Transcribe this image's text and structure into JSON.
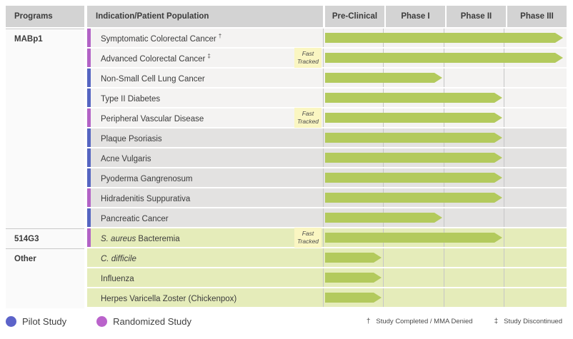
{
  "header": {
    "programs": "Programs",
    "indication": "Indication/Patient Population",
    "phases": [
      "Pre-Clinical",
      "Phase I",
      "Phase II",
      "Phase III"
    ]
  },
  "labels": {
    "fast_line1": "Fast",
    "fast_line2": "Tracked"
  },
  "chart_data": {
    "type": "bar",
    "title": "Clinical development pipeline: furthest phase reached per indication",
    "x_categories": [
      "Pre-Clinical",
      "Phase I",
      "Phase II",
      "Phase III"
    ],
    "phase_scale": {
      "preclinical": 1,
      "phase1": 2,
      "phase2": 3,
      "phase3": 4
    },
    "rows": [
      {
        "program": "MABp1",
        "program_start": true,
        "section": "a",
        "indication_italic": "",
        "indication": "Symptomatic Colorectal Cancer",
        "sup": "†",
        "study": "randomized",
        "phase": "phase3",
        "phase_num": 4,
        "fast_tracked": false
      },
      {
        "program": "",
        "program_start": false,
        "section": "a",
        "indication_italic": "",
        "indication": "Advanced Colorectal Cancer",
        "sup": "‡",
        "study": "randomized",
        "phase": "phase3",
        "phase_num": 4,
        "fast_tracked": true
      },
      {
        "program": "",
        "program_start": false,
        "section": "a",
        "indication_italic": "",
        "indication": "Non-Small Cell Lung Cancer",
        "sup": "",
        "study": "pilot",
        "phase": "phase1",
        "phase_num": 2,
        "fast_tracked": false
      },
      {
        "program": "",
        "program_start": false,
        "section": "a",
        "indication_italic": "",
        "indication": "Type II Diabetes",
        "sup": "",
        "study": "pilot",
        "phase": "phase2",
        "phase_num": 3,
        "fast_tracked": false
      },
      {
        "program": "",
        "program_start": false,
        "section": "a",
        "indication_italic": "",
        "indication": "Peripheral Vascular Disease",
        "sup": "",
        "study": "randomized",
        "phase": "phase2",
        "phase_num": 3,
        "fast_tracked": true
      },
      {
        "program": "",
        "program_start": false,
        "section": "b",
        "indication_italic": "",
        "indication": "Plaque Psoriasis",
        "sup": "",
        "study": "pilot",
        "phase": "phase2",
        "phase_num": 3,
        "fast_tracked": false
      },
      {
        "program": "",
        "program_start": false,
        "section": "b",
        "indication_italic": "",
        "indication": "Acne Vulgaris",
        "sup": "",
        "study": "pilot",
        "phase": "phase2",
        "phase_num": 3,
        "fast_tracked": false
      },
      {
        "program": "",
        "program_start": false,
        "section": "b",
        "indication_italic": "",
        "indication": "Pyoderma Gangrenosum",
        "sup": "",
        "study": "pilot",
        "phase": "phase2",
        "phase_num": 3,
        "fast_tracked": false
      },
      {
        "program": "",
        "program_start": false,
        "section": "b",
        "indication_italic": "",
        "indication": "Hidradenitis Suppurativa",
        "sup": "",
        "study": "randomized",
        "phase": "phase2",
        "phase_num": 3,
        "fast_tracked": false
      },
      {
        "program": "",
        "program_start": false,
        "section": "b",
        "indication_italic": "",
        "indication": "Pancreatic Cancer",
        "sup": "",
        "study": "pilot",
        "phase": "phase1",
        "phase_num": 2,
        "fast_tracked": false
      },
      {
        "program": "514G3",
        "program_start": true,
        "section": "green",
        "indication_italic": "S. aureus",
        "indication": " Bacteremia",
        "sup": "",
        "study": "randomized",
        "phase": "phase2",
        "phase_num": 3,
        "fast_tracked": true
      },
      {
        "program": "Other",
        "program_start": true,
        "section": "green",
        "indication_italic": "C. difficile",
        "indication": "",
        "sup": "",
        "study": "",
        "phase": "preclinical",
        "phase_num": 1,
        "fast_tracked": false
      },
      {
        "program": "",
        "program_start": false,
        "section": "green",
        "indication_italic": "",
        "indication": "Influenza",
        "sup": "",
        "study": "",
        "phase": "preclinical",
        "phase_num": 1,
        "fast_tracked": false
      },
      {
        "program": "",
        "program_start": false,
        "section": "green",
        "indication_italic": "",
        "indication": "Herpes Varicella Zoster (Chickenpox)",
        "sup": "",
        "study": "",
        "phase": "preclinical",
        "phase_num": 1,
        "fast_tracked": false
      }
    ]
  },
  "legend": [
    {
      "label": "Pilot Study",
      "color": "#5c63c9"
    },
    {
      "label": "Randomized Study",
      "color": "#ba63cb"
    }
  ],
  "footnotes": [
    {
      "symbol": "†",
      "text": "Study Completed / MMA Denied"
    },
    {
      "symbol": "‡",
      "text": "Study Discontinued"
    }
  ],
  "colors": {
    "arrow_green": "#b3ca5d",
    "header_bg": "#d3d3d3",
    "section_light_gray": "#f4f3f2",
    "section_dark_gray": "#e3e2e1",
    "section_green": "#e5ecba",
    "pilot_bar": "#5565c1",
    "randomized_bar": "#b263c6",
    "fast_badge_bg": "#faf6c2"
  }
}
